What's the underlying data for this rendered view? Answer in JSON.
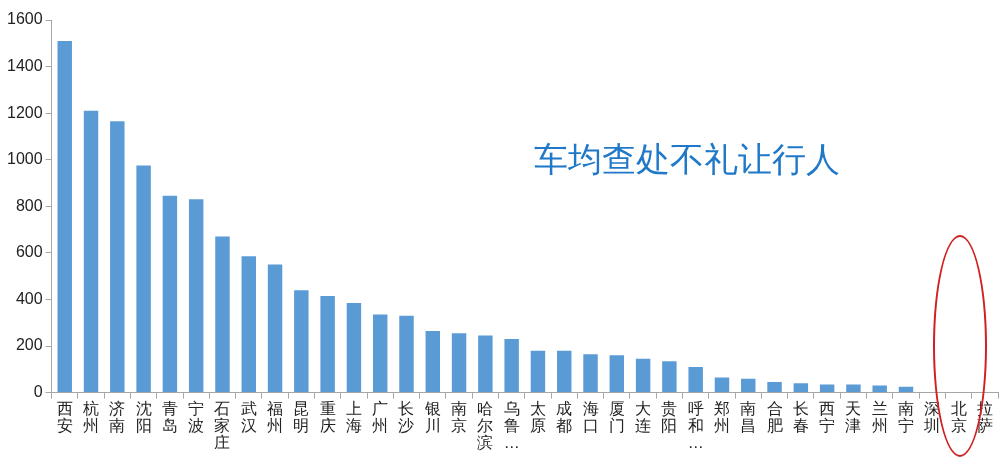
{
  "chart_data": {
    "type": "bar",
    "title": "车均查处不礼让行人",
    "categories": [
      "西安",
      "杭州",
      "济南",
      "沈阳",
      "青岛",
      "宁波",
      "石家庄",
      "武汉",
      "福州",
      "昆明",
      "重庆",
      "上海",
      "广州",
      "长沙",
      "银川",
      "南京",
      "哈尔滨",
      "乌鲁…",
      "太原",
      "成都",
      "海口",
      "厦门",
      "大连",
      "贵阳",
      "呼和…",
      "郑州",
      "南昌",
      "合肥",
      "长春",
      "西宁",
      "天津",
      "兰州",
      "南宁",
      "深圳",
      "北京",
      "拉萨"
    ],
    "values": [
      1510,
      1210,
      1165,
      975,
      845,
      830,
      670,
      585,
      550,
      440,
      415,
      385,
      335,
      330,
      265,
      255,
      245,
      230,
      180,
      180,
      165,
      160,
      145,
      135,
      110,
      65,
      60,
      45,
      40,
      35,
      35,
      30,
      25,
      3,
      0,
      0
    ],
    "color": "#5b9bd5",
    "ylim": [
      0,
      1600
    ],
    "yticks": [
      0,
      200,
      400,
      600,
      800,
      1000,
      1200,
      1400,
      1600
    ],
    "grid": false,
    "legend": false
  }
}
